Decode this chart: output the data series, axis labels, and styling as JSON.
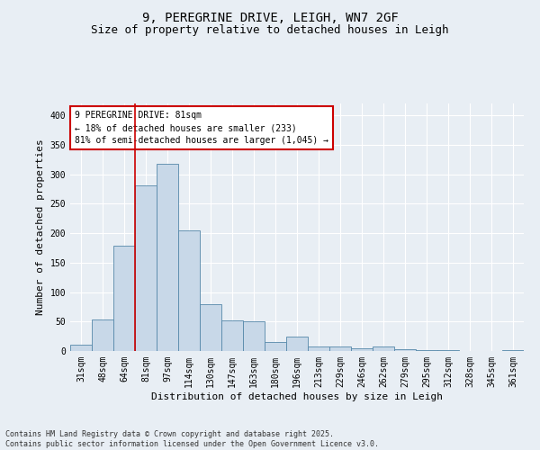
{
  "title_line1": "9, PEREGRINE DRIVE, LEIGH, WN7 2GF",
  "title_line2": "Size of property relative to detached houses in Leigh",
  "xlabel": "Distribution of detached houses by size in Leigh",
  "ylabel": "Number of detached properties",
  "categories": [
    "31sqm",
    "48sqm",
    "64sqm",
    "81sqm",
    "97sqm",
    "114sqm",
    "130sqm",
    "147sqm",
    "163sqm",
    "180sqm",
    "196sqm",
    "213sqm",
    "229sqm",
    "246sqm",
    "262sqm",
    "279sqm",
    "295sqm",
    "312sqm",
    "328sqm",
    "345sqm",
    "361sqm"
  ],
  "values": [
    11,
    53,
    178,
    281,
    317,
    204,
    80,
    52,
    50,
    15,
    25,
    7,
    8,
    5,
    8,
    3,
    2,
    1,
    0,
    0,
    1
  ],
  "bar_color": "#c8d8e8",
  "bar_edge_color": "#5588aa",
  "vline_index": 3,
  "vline_color": "#cc0000",
  "annotation_text": "9 PEREGRINE DRIVE: 81sqm\n← 18% of detached houses are smaller (233)\n81% of semi-detached houses are larger (1,045) →",
  "annotation_box_edgecolor": "#cc0000",
  "footnote": "Contains HM Land Registry data © Crown copyright and database right 2025.\nContains public sector information licensed under the Open Government Licence v3.0.",
  "ylim": [
    0,
    420
  ],
  "yticks": [
    0,
    50,
    100,
    150,
    200,
    250,
    300,
    350,
    400
  ],
  "background_color": "#e8eef4",
  "grid_color": "#ffffff",
  "title_fontsize": 10,
  "subtitle_fontsize": 9,
  "ylabel_fontsize": 8,
  "xlabel_fontsize": 8,
  "tick_fontsize": 7,
  "annot_fontsize": 7,
  "footnote_fontsize": 6
}
